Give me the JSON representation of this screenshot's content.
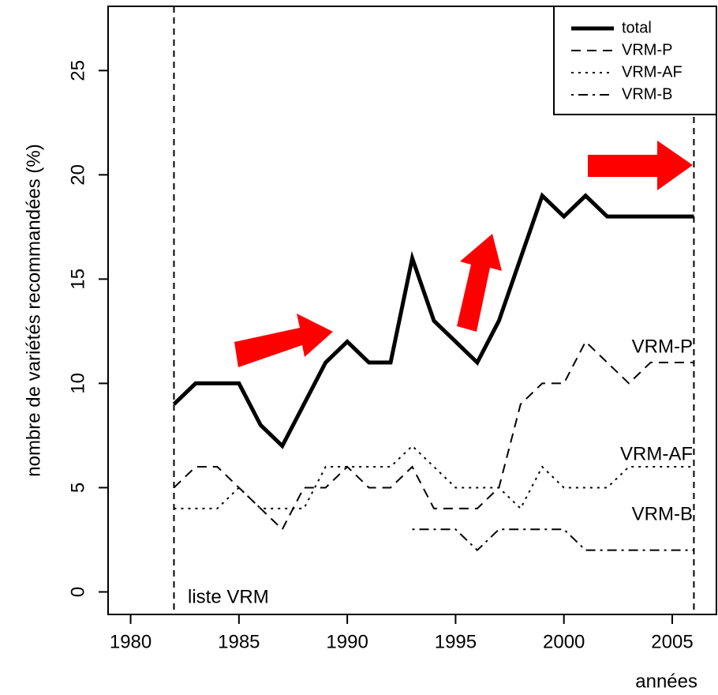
{
  "chart_data": {
    "type": "line",
    "x_label": "années",
    "y_label": "nombre de variétés recommandées (%)",
    "x": [
      1982,
      1983,
      1984,
      1985,
      1986,
      1987,
      1988,
      1989,
      1990,
      1991,
      1992,
      1993,
      1994,
      1995,
      1996,
      1997,
      1998,
      1999,
      2000,
      2001,
      2002,
      2003,
      2004,
      2005,
      2006
    ],
    "series": [
      {
        "name": "total",
        "color": "#000000",
        "dash": "solid",
        "values": [
          9,
          10,
          10,
          10,
          8,
          7,
          9,
          11,
          12,
          11,
          11,
          16,
          13,
          12,
          11,
          13,
          16,
          19,
          18,
          19,
          18,
          18,
          18,
          18,
          18
        ]
      },
      {
        "name": "VRM-P",
        "color": "#000000",
        "dash": "dashed",
        "values": [
          5,
          6,
          6,
          5,
          4,
          3,
          5,
          5,
          6,
          5,
          5,
          6,
          4,
          4,
          4,
          5,
          9,
          10,
          10,
          12,
          11,
          10,
          11,
          11,
          11
        ]
      },
      {
        "name": "VRM-AF",
        "color": "#000000",
        "dash": "dotted",
        "values": [
          4,
          4,
          4,
          5,
          4,
          4,
          4,
          6,
          6,
          6,
          6,
          7,
          6,
          5,
          5,
          5,
          4,
          6,
          5,
          5,
          5,
          6,
          6,
          6,
          6
        ]
      },
      {
        "name": "VRM-B",
        "color": "#000000",
        "dash": "dotdash",
        "values": [
          null,
          null,
          null,
          null,
          null,
          null,
          null,
          null,
          null,
          null,
          null,
          3,
          3,
          3,
          2,
          3,
          3,
          3,
          3,
          2,
          2,
          2,
          2,
          2,
          2
        ]
      }
    ],
    "vlines": [
      1982,
      2006
    ],
    "annotations": [
      "liste VRM",
      "VRM-P",
      "VRM-AF",
      "VRM-B"
    ],
    "xlim": [
      1978.96,
      2007.04
    ],
    "xticks": [
      1980,
      1985,
      1990,
      1995,
      2000,
      2005
    ],
    "ylim": [
      -1.08,
      28.08
    ],
    "yticks": [
      0,
      5,
      10,
      15,
      20,
      25
    ],
    "legend": "top-right"
  }
}
